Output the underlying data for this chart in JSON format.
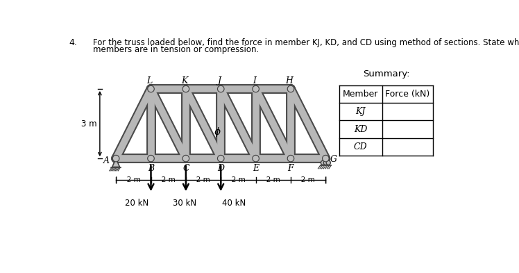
{
  "title_number": "4.",
  "title_line1": "For the truss loaded below, find the force in member KJ, KD, and CD using method of sections. State whether the",
  "title_line2": "members are in tension or compression.",
  "height_label": "3 m",
  "summary_title": "Summary:",
  "table_col1": "Member",
  "table_col2": "Force (kN)",
  "table_members": [
    "KJ",
    "KD",
    "CD"
  ],
  "load_labels": [
    "20 kN",
    "30 kN",
    "40 kN"
  ],
  "dim_segment": "-2 m-",
  "phi_label": "φ",
  "bg_color": "#ffffff",
  "member_fill": "#b8b8b8",
  "member_edge": "#4a4a4a",
  "node_fill": "#c0c0c0",
  "node_edge": "#404040",
  "text_color": "#000000",
  "lw_member": 7,
  "lw_edge": 10,
  "node_r": 4.5
}
